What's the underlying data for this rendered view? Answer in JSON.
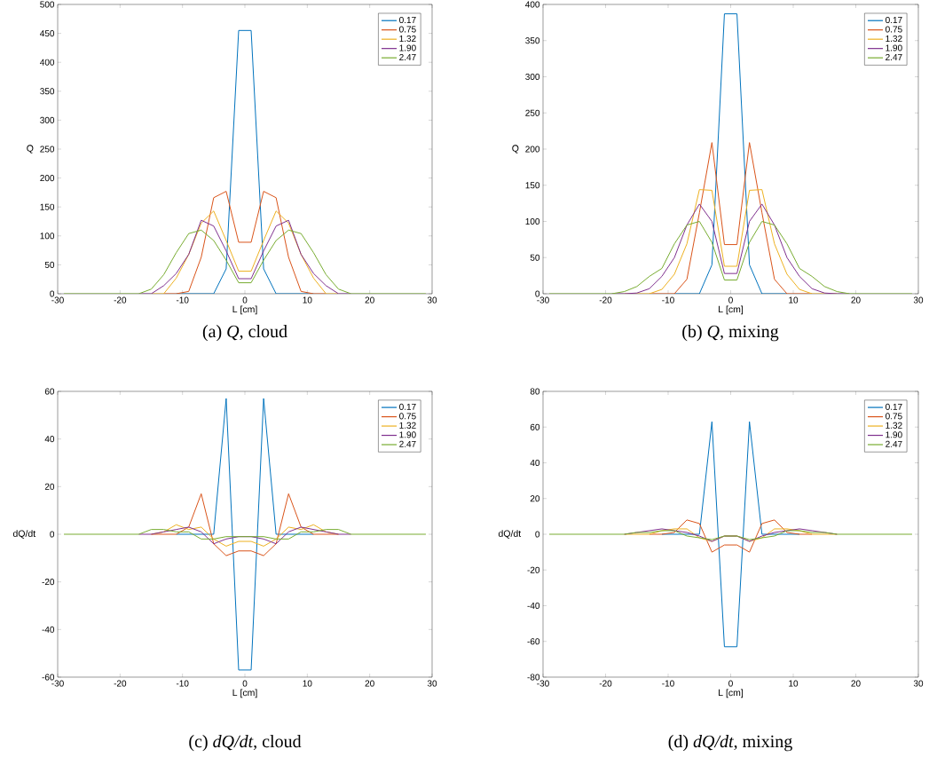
{
  "chart_data": [
    {
      "type": "line",
      "title": "(a) *Q*, cloud",
      "xlabel": "L [cm]",
      "ylabel": "Q",
      "legend": "top right",
      "xlim": [
        -30,
        30
      ],
      "xticks": [
        -30,
        -20,
        -10,
        0,
        10,
        20,
        30
      ],
      "ylim": [
        0,
        500
      ],
      "yticks": [
        0,
        50,
        100,
        150,
        200,
        250,
        300,
        350,
        400,
        450,
        500
      ],
      "x": [
        -29,
        -27,
        -25,
        -23,
        -21,
        -19,
        -17,
        -15,
        -13,
        -11,
        -9,
        -7,
        -5,
        -3,
        -1,
        1,
        3,
        5,
        7,
        9,
        11,
        13,
        15,
        17,
        19,
        21,
        23,
        25,
        27,
        29
      ],
      "series": [
        {
          "name": "0.17",
          "color": "#0072bd",
          "values": [
            null,
            null,
            null,
            null,
            null,
            null,
            null,
            null,
            null,
            0,
            0,
            0,
            0,
            43,
            455,
            455,
            43,
            0,
            0,
            0,
            0,
            null,
            null,
            null,
            null,
            null,
            null,
            null,
            null,
            null
          ]
        },
        {
          "name": "0.75",
          "color": "#d95319",
          "values": [
            null,
            null,
            null,
            null,
            null,
            null,
            null,
            null,
            0,
            0,
            4,
            63,
            166,
            177,
            89,
            89,
            177,
            166,
            63,
            4,
            0,
            0,
            null,
            null,
            null,
            null,
            null,
            null,
            null,
            null
          ]
        },
        {
          "name": "1.32",
          "color": "#edb120",
          "values": [
            null,
            null,
            null,
            null,
            null,
            null,
            null,
            0,
            0,
            27,
            68,
            122,
            143,
            92,
            39,
            39,
            92,
            143,
            122,
            68,
            27,
            0,
            0,
            null,
            null,
            null,
            null,
            null,
            null,
            null
          ]
        },
        {
          "name": "1.90",
          "color": "#7e2f8e",
          "values": [
            null,
            null,
            null,
            null,
            null,
            null,
            0,
            0,
            14,
            35,
            68,
            127,
            117,
            74,
            26,
            26,
            74,
            117,
            127,
            68,
            35,
            14,
            0,
            0,
            null,
            null,
            null,
            null,
            null,
            null
          ]
        },
        {
          "name": "2.47",
          "color": "#77ac30",
          "values": [
            0,
            0,
            0,
            0,
            0,
            0,
            0,
            8,
            33,
            71,
            104,
            110,
            92,
            58,
            19,
            19,
            58,
            92,
            110,
            104,
            71,
            33,
            8,
            0,
            0,
            0,
            0,
            0,
            0,
            0
          ]
        }
      ]
    },
    {
      "type": "line",
      "title": "(b) *Q*, mixing",
      "xlabel": "L [cm]",
      "ylabel": "Q",
      "legend": "top right",
      "xlim": [
        -30,
        30
      ],
      "xticks": [
        -30,
        -20,
        -10,
        0,
        10,
        20,
        30
      ],
      "ylim": [
        0,
        400
      ],
      "yticks": [
        0,
        50,
        100,
        150,
        200,
        250,
        300,
        350,
        400
      ],
      "x": [
        -29,
        -27,
        -25,
        -23,
        -21,
        -19,
        -17,
        -15,
        -13,
        -11,
        -9,
        -7,
        -5,
        -3,
        -1,
        1,
        3,
        5,
        7,
        9,
        11,
        13,
        15,
        17,
        19,
        21,
        23,
        25,
        27,
        29
      ],
      "series": [
        {
          "name": "0.17",
          "color": "#0072bd",
          "values": [
            null,
            null,
            null,
            null,
            null,
            null,
            null,
            null,
            null,
            null,
            0,
            0,
            0,
            40,
            387,
            387,
            40,
            0,
            0,
            0,
            null,
            null,
            null,
            null,
            null,
            null,
            null,
            null,
            null,
            null
          ]
        },
        {
          "name": "0.75",
          "color": "#d95319",
          "values": [
            null,
            null,
            null,
            null,
            null,
            null,
            null,
            null,
            0,
            0,
            0,
            20,
            112,
            209,
            68,
            68,
            209,
            112,
            20,
            0,
            0,
            0,
            null,
            null,
            null,
            null,
            null,
            null,
            null,
            null
          ]
        },
        {
          "name": "1.32",
          "color": "#edb120",
          "values": [
            null,
            null,
            null,
            null,
            null,
            null,
            0,
            0,
            0,
            6,
            27,
            69,
            144,
            143,
            38,
            38,
            143,
            144,
            69,
            27,
            6,
            0,
            0,
            0,
            null,
            null,
            null,
            null,
            null,
            null
          ]
        },
        {
          "name": "1.90",
          "color": "#7e2f8e",
          "values": [
            null,
            null,
            null,
            null,
            null,
            0,
            0,
            1,
            7,
            24,
            50,
            95,
            124,
            100,
            28,
            28,
            100,
            124,
            95,
            50,
            24,
            7,
            1,
            0,
            0,
            null,
            null,
            null,
            null,
            null
          ]
        },
        {
          "name": "2.47",
          "color": "#77ac30",
          "values": [
            0,
            0,
            0,
            0,
            0,
            0,
            3,
            10,
            24,
            35,
            69,
            95,
            100,
            71,
            19,
            19,
            71,
            100,
            95,
            69,
            35,
            24,
            10,
            3,
            0,
            0,
            0,
            0,
            0,
            0
          ]
        }
      ]
    },
    {
      "type": "line",
      "title": "(c) *dQ/dt*, cloud",
      "xlabel": "L [cm]",
      "ylabel": "dQ/dt",
      "legend": "top right",
      "xlim": [
        -30,
        30
      ],
      "xticks": [
        -30,
        -20,
        -10,
        0,
        10,
        20,
        30
      ],
      "ylim": [
        -60,
        60
      ],
      "yticks": [
        -60,
        -40,
        -20,
        0,
        20,
        40,
        60
      ],
      "x": [
        -29,
        -27,
        -25,
        -23,
        -21,
        -19,
        -17,
        -15,
        -13,
        -11,
        -9,
        -7,
        -5,
        -3,
        -1,
        1,
        3,
        5,
        7,
        9,
        11,
        13,
        15,
        17,
        19,
        21,
        23,
        25,
        27,
        29
      ],
      "series": [
        {
          "name": "0.17",
          "color": "#0072bd",
          "values": [
            null,
            null,
            null,
            null,
            null,
            null,
            null,
            null,
            null,
            0,
            0,
            0,
            0,
            57,
            -57,
            -57,
            57,
            0,
            0,
            0,
            0,
            null,
            null,
            null,
            null,
            null,
            null,
            null,
            null,
            null
          ]
        },
        {
          "name": "0.75",
          "color": "#d95319",
          "values": [
            null,
            null,
            null,
            null,
            null,
            null,
            null,
            0,
            0,
            0,
            3,
            17,
            -4,
            -9,
            -7,
            -7,
            -9,
            -4,
            17,
            3,
            0,
            0,
            0,
            null,
            null,
            null,
            null,
            null,
            null,
            null
          ]
        },
        {
          "name": "1.32",
          "color": "#edb120",
          "values": [
            null,
            null,
            null,
            null,
            null,
            null,
            null,
            0,
            1,
            4,
            2,
            3,
            -2,
            -5,
            -3,
            -3,
            -5,
            -2,
            3,
            2,
            4,
            1,
            0,
            null,
            null,
            null,
            null,
            null,
            null,
            null
          ]
        },
        {
          "name": "1.90",
          "color": "#7e2f8e",
          "values": [
            null,
            null,
            null,
            null,
            null,
            null,
            0,
            0,
            1,
            2,
            3,
            1,
            -4,
            -2,
            -1,
            -1,
            -2,
            -4,
            1,
            3,
            2,
            1,
            0,
            0,
            null,
            null,
            null,
            null,
            null,
            null
          ]
        },
        {
          "name": "2.47",
          "color": "#77ac30",
          "values": [
            0,
            0,
            0,
            0,
            0,
            0,
            0,
            2,
            2,
            1,
            1,
            -2,
            -2,
            -1,
            -1,
            -1,
            -1,
            -2,
            -2,
            1,
            1,
            2,
            2,
            0,
            0,
            0,
            0,
            0,
            0,
            0
          ]
        }
      ]
    },
    {
      "type": "line",
      "title": "(d) *dQ/dt*, mixing",
      "xlabel": "L [cm]",
      "ylabel": "dQ/dt",
      "legend": "top right",
      "xlim": [
        -30,
        30
      ],
      "xticks": [
        -30,
        -20,
        -10,
        0,
        10,
        20,
        30
      ],
      "ylim": [
        -80,
        80
      ],
      "yticks": [
        -80,
        -60,
        -40,
        -20,
        0,
        20,
        40,
        60,
        80
      ],
      "x": [
        -29,
        -27,
        -25,
        -23,
        -21,
        -19,
        -17,
        -15,
        -13,
        -11,
        -9,
        -7,
        -5,
        -3,
        -1,
        1,
        3,
        5,
        7,
        9,
        11,
        13,
        15,
        17,
        19,
        21,
        23,
        25,
        27,
        29
      ],
      "series": [
        {
          "name": "0.17",
          "color": "#0072bd",
          "values": [
            null,
            null,
            null,
            null,
            null,
            null,
            null,
            null,
            null,
            0,
            0,
            0,
            0,
            63,
            -63,
            -63,
            63,
            0,
            0,
            0,
            0,
            null,
            null,
            null,
            null,
            null,
            null,
            null,
            null,
            null
          ]
        },
        {
          "name": "0.75",
          "color": "#d95319",
          "values": [
            null,
            null,
            null,
            null,
            null,
            null,
            null,
            null,
            0,
            0,
            1,
            8,
            6,
            -10,
            -6,
            -6,
            -10,
            6,
            8,
            1,
            0,
            0,
            null,
            null,
            null,
            null,
            null,
            null,
            null,
            null
          ]
        },
        {
          "name": "1.32",
          "color": "#edb120",
          "values": [
            null,
            null,
            null,
            null,
            null,
            null,
            0,
            0,
            0,
            2,
            3,
            3,
            -2,
            -4,
            -1,
            -1,
            -4,
            -2,
            3,
            3,
            2,
            0,
            0,
            0,
            null,
            null,
            null,
            null,
            null,
            null
          ]
        },
        {
          "name": "1.90",
          "color": "#7e2f8e",
          "values": [
            null,
            null,
            null,
            null,
            null,
            null,
            0,
            1,
            2,
            3,
            2,
            1,
            -1,
            -4,
            -1,
            -1,
            -4,
            -1,
            1,
            2,
            3,
            2,
            1,
            0,
            null,
            null,
            null,
            null,
            null,
            null
          ]
        },
        {
          "name": "2.47",
          "color": "#77ac30",
          "values": [
            0,
            0,
            0,
            0,
            0,
            0,
            0,
            1,
            1,
            2,
            2,
            -1,
            -2,
            -3,
            -1,
            -1,
            -3,
            -2,
            -1,
            2,
            2,
            1,
            1,
            0,
            0,
            0,
            0,
            0,
            0,
            0
          ]
        }
      ]
    }
  ]
}
